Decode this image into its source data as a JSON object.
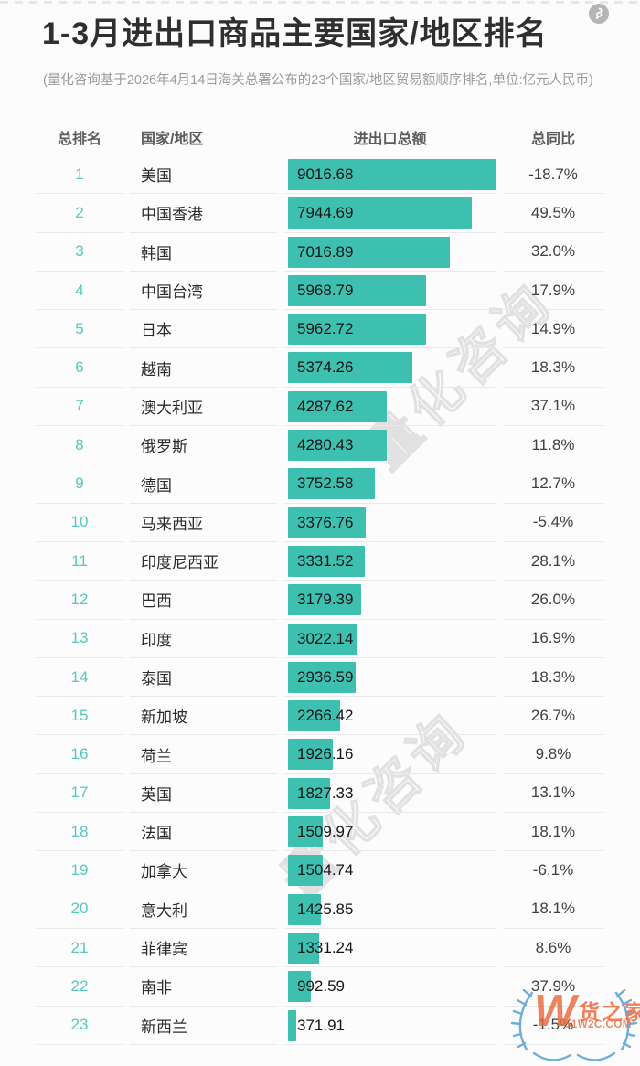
{
  "page": {
    "title": "1-3月进出口商品主要国家/地区排名",
    "subtitle": "(量化咨询基于2026年4月14日海关总署公布的23个国家/地区贸易额顺序排名,单位:亿元人民币)"
  },
  "colors": {
    "bar": "#3ec0b0",
    "rank_text": "#58c8ba",
    "logo_orange": "#eb693c",
    "laurel_blue": "#64a9da",
    "watermark_gray": "#e1e1e1"
  },
  "icons": {
    "share": "share-link-icon",
    "laurel": "laurel-wreath-icon"
  },
  "watermark": {
    "diagonal_text": "量化咨询",
    "logo_w": "W",
    "logo_brand": "货之家",
    "logo_domain": "51W2C.COM"
  },
  "chart_data": {
    "type": "bar",
    "orientation": "horizontal",
    "title": "1-3月进出口商品主要国家/地区排名",
    "subtitle": "(量化咨询基于2026年4月14日海关总署公布的23个国家/地区贸易额顺序排名,单位:亿元人民币)",
    "unit": "亿元人民币",
    "columns": [
      "总排名",
      "国家/地区",
      "进出口总额",
      "总同比"
    ],
    "max_value": 9016.68,
    "legend": false,
    "grid": false,
    "rows": [
      {
        "rank": "1",
        "country": "美国",
        "value": "9016.68",
        "yoy": "-18.7%"
      },
      {
        "rank": "2",
        "country": "中国香港",
        "value": "7944.69",
        "yoy": "49.5%"
      },
      {
        "rank": "3",
        "country": "韩国",
        "value": "7016.89",
        "yoy": "32.0%"
      },
      {
        "rank": "4",
        "country": "中国台湾",
        "value": "5968.79",
        "yoy": "17.9%"
      },
      {
        "rank": "5",
        "country": "日本",
        "value": "5962.72",
        "yoy": "14.9%"
      },
      {
        "rank": "6",
        "country": "越南",
        "value": "5374.26",
        "yoy": "18.3%"
      },
      {
        "rank": "7",
        "country": "澳大利亚",
        "value": "4287.62",
        "yoy": "37.1%"
      },
      {
        "rank": "8",
        "country": "俄罗斯",
        "value": "4280.43",
        "yoy": "11.8%"
      },
      {
        "rank": "9",
        "country": "德国",
        "value": "3752.58",
        "yoy": "12.7%"
      },
      {
        "rank": "10",
        "country": "马来西亚",
        "value": "3376.76",
        "yoy": "-5.4%"
      },
      {
        "rank": "11",
        "country": "印度尼西亚",
        "value": "3331.52",
        "yoy": "28.1%"
      },
      {
        "rank": "12",
        "country": "巴西",
        "value": "3179.39",
        "yoy": "26.0%"
      },
      {
        "rank": "13",
        "country": "印度",
        "value": "3022.14",
        "yoy": "16.9%"
      },
      {
        "rank": "14",
        "country": "泰国",
        "value": "2936.59",
        "yoy": "18.3%"
      },
      {
        "rank": "15",
        "country": "新加坡",
        "value": "2266.42",
        "yoy": "26.7%"
      },
      {
        "rank": "16",
        "country": "荷兰",
        "value": "1926.16",
        "yoy": "9.8%"
      },
      {
        "rank": "17",
        "country": "英国",
        "value": "1827.33",
        "yoy": "13.1%"
      },
      {
        "rank": "18",
        "country": "法国",
        "value": "1509.97",
        "yoy": "18.1%"
      },
      {
        "rank": "19",
        "country": "加拿大",
        "value": "1504.74",
        "yoy": "-6.1%"
      },
      {
        "rank": "20",
        "country": "意大利",
        "value": "1425.85",
        "yoy": "18.1%"
      },
      {
        "rank": "21",
        "country": "菲律宾",
        "value": "1331.24",
        "yoy": "8.6%"
      },
      {
        "rank": "22",
        "country": "南非",
        "value": "992.59",
        "yoy": "37.9%"
      },
      {
        "rank": "23",
        "country": "新西兰",
        "value": "371.91",
        "yoy": "-1.5%"
      }
    ]
  }
}
